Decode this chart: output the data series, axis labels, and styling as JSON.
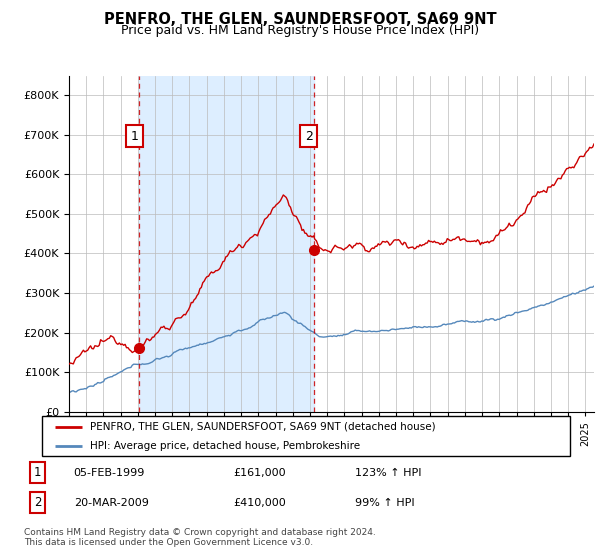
{
  "title": "PENFRO, THE GLEN, SAUNDERSFOOT, SA69 9NT",
  "subtitle": "Price paid vs. HM Land Registry's House Price Index (HPI)",
  "legend_line1": "PENFRO, THE GLEN, SAUNDERSFOOT, SA69 9NT (detached house)",
  "legend_line2": "HPI: Average price, detached house, Pembrokeshire",
  "table_row1": [
    "1",
    "05-FEB-1999",
    "£161,000",
    "123% ↑ HPI"
  ],
  "table_row2": [
    "2",
    "20-MAR-2009",
    "£410,000",
    "99% ↑ HPI"
  ],
  "footnote": "Contains HM Land Registry data © Crown copyright and database right 2024.\nThis data is licensed under the Open Government Licence v3.0.",
  "price_color": "#cc0000",
  "hpi_color": "#5588bb",
  "vline_color": "#cc0000",
  "shade_color": "#ddeeff",
  "marker1_year": 1999.09,
  "marker1_value": 161000,
  "marker2_year": 2009.22,
  "marker2_value": 410000,
  "ylim": [
    0,
    850000
  ],
  "yticks": [
    0,
    100000,
    200000,
    300000,
    400000,
    500000,
    600000,
    700000,
    800000
  ],
  "xlim_start": 1995.0,
  "xlim_end": 2025.5
}
